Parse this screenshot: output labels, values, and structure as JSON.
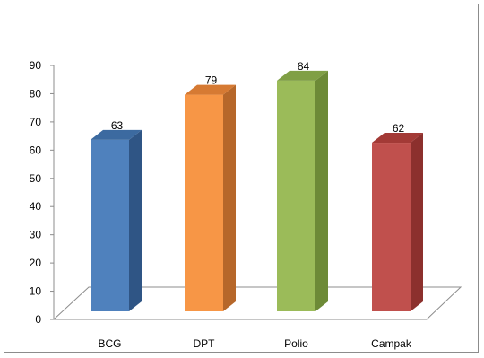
{
  "chart_data": {
    "type": "bar",
    "style": "3d-column",
    "categories": [
      "BCG",
      "DPT",
      "Polio",
      "Campak"
    ],
    "values": [
      63,
      79,
      84,
      62
    ],
    "data_labels": [
      "63",
      "79",
      "84",
      "62"
    ],
    "colors": [
      "#4f81bd",
      "#f79646",
      "#9bbb59",
      "#c0504d"
    ],
    "side_colors": [
      "#2f5585",
      "#b6672a",
      "#6d8a37",
      "#8c302d"
    ],
    "top_colors": [
      "#3c6aa0",
      "#d67a33",
      "#809f45",
      "#a33a36"
    ],
    "yticks": [
      "0",
      "10",
      "20",
      "30",
      "40",
      "50",
      "60",
      "70",
      "80",
      "90"
    ],
    "ylim": [
      0,
      90
    ],
    "title": "",
    "xlabel": "",
    "ylabel": "",
    "legend": false,
    "grid": false
  }
}
